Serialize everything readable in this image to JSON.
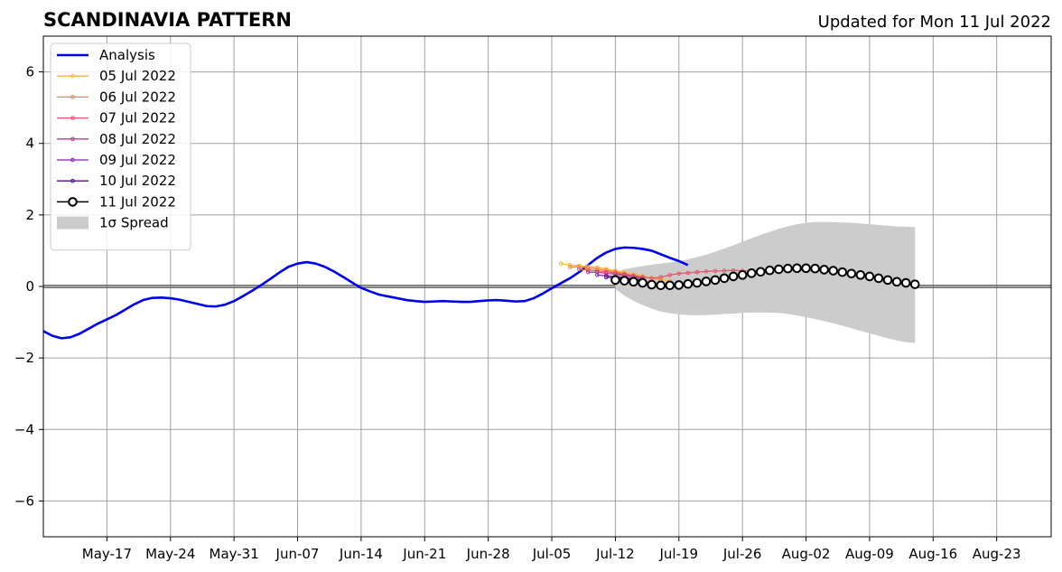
{
  "chart_data": {
    "type": "line",
    "title": "SCANDINAVIA PATTERN",
    "subtitle": "Updated for Mon 11 Jul 2022",
    "xlim": [
      "2022-05-10",
      "2022-08-29"
    ],
    "ylim": [
      -7,
      7
    ],
    "yticks": [
      -6,
      -4,
      -2,
      0,
      2,
      4,
      6
    ],
    "ytick_labels": [
      "−6",
      "−4",
      "−2",
      "0",
      "2",
      "4",
      "6"
    ],
    "xticks": [
      "2022-05-17",
      "2022-05-24",
      "2022-05-31",
      "2022-06-07",
      "2022-06-14",
      "2022-06-21",
      "2022-06-28",
      "2022-07-05",
      "2022-07-12",
      "2022-07-19",
      "2022-07-26",
      "2022-08-02",
      "2022-08-09",
      "2022-08-16",
      "2022-08-23"
    ],
    "xtick_labels": [
      "May-17",
      "May-24",
      "May-31",
      "Jun-07",
      "Jun-14",
      "Jun-21",
      "Jun-28",
      "Jul-05",
      "Jul-12",
      "Jul-19",
      "Jul-26",
      "Aug-02",
      "Aug-09",
      "Aug-16",
      "Aug-23"
    ],
    "grid": true,
    "zero_line": true,
    "legend_position": "upper-left",
    "analysis": {
      "name": "Analysis",
      "color": "#0000ee",
      "start": "2022-05-10",
      "values": [
        -1.25,
        -1.38,
        -1.45,
        -1.42,
        -1.32,
        -1.18,
        -1.04,
        -0.92,
        -0.8,
        -0.65,
        -0.5,
        -0.38,
        -0.32,
        -0.31,
        -0.33,
        -0.37,
        -0.43,
        -0.49,
        -0.55,
        -0.56,
        -0.51,
        -0.41,
        -0.27,
        -0.12,
        0.04,
        0.21,
        0.39,
        0.55,
        0.64,
        0.68,
        0.64,
        0.55,
        0.42,
        0.27,
        0.11,
        -0.04,
        -0.14,
        -0.23,
        -0.28,
        -0.33,
        -0.38,
        -0.41,
        -0.43,
        -0.42,
        -0.41,
        -0.42,
        -0.43,
        -0.43,
        -0.41,
        -0.39,
        -0.38,
        -0.4,
        -0.42,
        -0.41,
        -0.33,
        -0.2,
        -0.05,
        0.09,
        0.23,
        0.4,
        0.6,
        0.8,
        0.95,
        1.05,
        1.09,
        1.08,
        1.05,
        1.0,
        0.9,
        0.8,
        0.71,
        0.6
      ]
    },
    "forecasts": [
      {
        "name": "05 Jul 2022",
        "color": "#fcb632",
        "start": "2022-07-06",
        "values": [
          0.64,
          0.6,
          0.58,
          0.56,
          0.53,
          0.49,
          0.44,
          0.39,
          0.34,
          0.29,
          0.24,
          0.2,
          0.16
        ]
      },
      {
        "name": "06 Jul 2022",
        "color": "#f78840",
        "start": "2022-07-07",
        "values": [
          0.54,
          0.55,
          0.52,
          0.49,
          0.45,
          0.41,
          0.36,
          0.31,
          0.27,
          0.23,
          0.19
        ]
      },
      {
        "name": "07 Jul 2022",
        "color": "#e1586a",
        "start": "2022-07-08",
        "values": [
          0.48,
          0.46,
          0.44,
          0.41,
          0.38,
          0.34,
          0.3,
          0.26,
          0.23,
          0.26,
          0.32,
          0.36,
          0.38,
          0.4,
          0.42,
          0.43,
          0.44,
          0.45,
          0.44,
          0.43
        ]
      },
      {
        "name": "08 Jul 2022",
        "color": "#b43b8b",
        "start": "2022-07-09",
        "values": [
          0.4,
          0.4,
          0.37,
          0.34,
          0.31,
          0.27,
          0.23
        ]
      },
      {
        "name": "09 Jul 2022",
        "color": "#8723a6",
        "start": "2022-07-10",
        "values": [
          0.32,
          0.3,
          0.28,
          0.25,
          0.22,
          0.19
        ]
      },
      {
        "name": "10 Jul 2022",
        "color": "#4b0c8f",
        "start": "2022-07-11",
        "values": [
          0.26,
          0.24,
          0.22,
          0.2,
          0.18
        ]
      }
    ],
    "current_forecast": {
      "name": "11 Jul 2022",
      "color": "#000000",
      "start": "2022-07-12",
      "values": [
        0.18,
        0.16,
        0.13,
        0.1,
        0.05,
        0.03,
        0.03,
        0.04,
        0.07,
        0.1,
        0.14,
        0.18,
        0.23,
        0.28,
        0.32,
        0.37,
        0.41,
        0.45,
        0.48,
        0.5,
        0.51,
        0.51,
        0.5,
        0.47,
        0.44,
        0.4,
        0.36,
        0.32,
        0.28,
        0.23,
        0.18,
        0.13,
        0.1,
        0.06
      ]
    },
    "spread": {
      "name": "1σ Spread",
      "color": "#cccccc",
      "start": "2022-07-12",
      "upper": [
        0.4,
        0.48,
        0.53,
        0.57,
        0.61,
        0.64,
        0.67,
        0.71,
        0.76,
        0.82,
        0.89,
        0.97,
        1.06,
        1.15,
        1.25,
        1.35,
        1.44,
        1.53,
        1.61,
        1.68,
        1.74,
        1.78,
        1.8,
        1.8,
        1.8,
        1.79,
        1.78,
        1.76,
        1.74,
        1.72,
        1.7,
        1.68,
        1.67,
        1.66
      ],
      "lower": [
        -0.07,
        -0.26,
        -0.4,
        -0.52,
        -0.62,
        -0.7,
        -0.75,
        -0.78,
        -0.8,
        -0.81,
        -0.8,
        -0.79,
        -0.77,
        -0.76,
        -0.74,
        -0.73,
        -0.73,
        -0.73,
        -0.74,
        -0.77,
        -0.81,
        -0.86,
        -0.91,
        -0.97,
        -1.03,
        -1.1,
        -1.17,
        -1.24,
        -1.31,
        -1.38,
        -1.45,
        -1.51,
        -1.56,
        -1.58
      ]
    }
  }
}
